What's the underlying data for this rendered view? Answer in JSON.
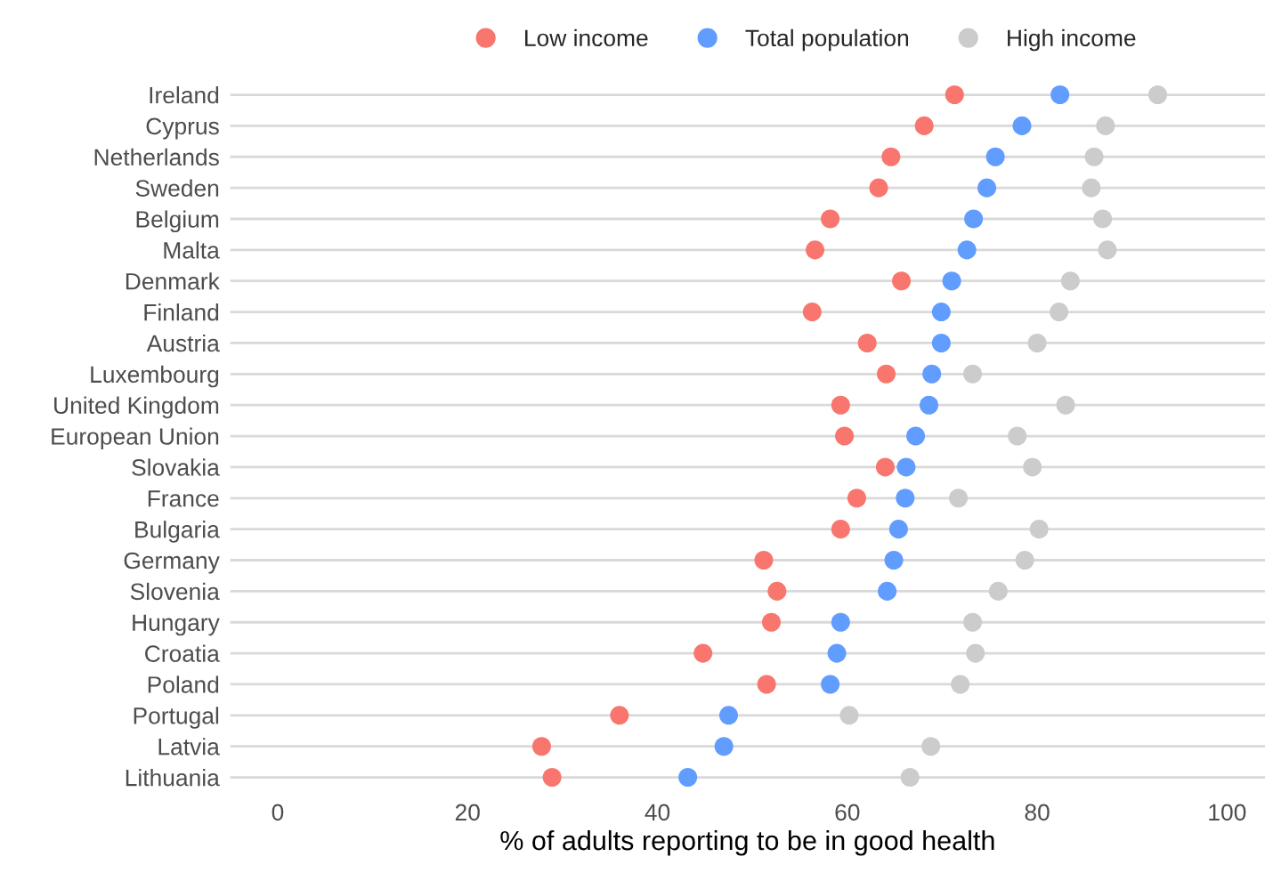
{
  "chart_data": {
    "type": "scatter",
    "orientation": "horizontal",
    "xlabel": "% of adults reporting to be in good health",
    "categories": [
      "Ireland",
      "Cyprus",
      "Netherlands",
      "Sweden",
      "Belgium",
      "Malta",
      "Denmark",
      "Finland",
      "Austria",
      "Luxembourg",
      "United Kingdom",
      "European Union",
      "Slovakia",
      "France",
      "Bulgaria",
      "Germany",
      "Slovenia",
      "Hungary",
      "Croatia",
      "Poland",
      "Portugal",
      "Latvia",
      "Lithuania"
    ],
    "series": [
      {
        "name": "Low income",
        "color": "#f8766d",
        "values": [
          71.3,
          68.1,
          64.6,
          63.3,
          58.2,
          56.6,
          65.7,
          56.3,
          62.1,
          64.1,
          59.3,
          59.7,
          64.0,
          61.0,
          59.3,
          51.2,
          52.6,
          52.0,
          44.8,
          51.5,
          36.0,
          27.8,
          28.9
        ]
      },
      {
        "name": "Total population",
        "color": "#619cff",
        "values": [
          82.4,
          78.4,
          75.6,
          74.7,
          73.3,
          72.6,
          71.0,
          69.9,
          69.9,
          68.9,
          68.6,
          67.2,
          66.2,
          66.1,
          65.4,
          64.9,
          64.2,
          59.3,
          58.9,
          58.2,
          47.5,
          47.0,
          43.2
        ]
      },
      {
        "name": "High income",
        "color": "#cccccc",
        "values": [
          92.7,
          87.2,
          86.0,
          85.7,
          86.9,
          87.4,
          83.5,
          82.3,
          80.0,
          73.2,
          83.0,
          77.9,
          79.5,
          71.7,
          80.2,
          78.7,
          75.9,
          73.2,
          73.5,
          71.9,
          60.2,
          68.8,
          66.6
        ]
      }
    ],
    "xlim": [
      -5,
      104
    ],
    "xticks": [
      0,
      20,
      40,
      60,
      80,
      100
    ],
    "grid": "y",
    "legend": "top",
    "marker": "circle"
  }
}
